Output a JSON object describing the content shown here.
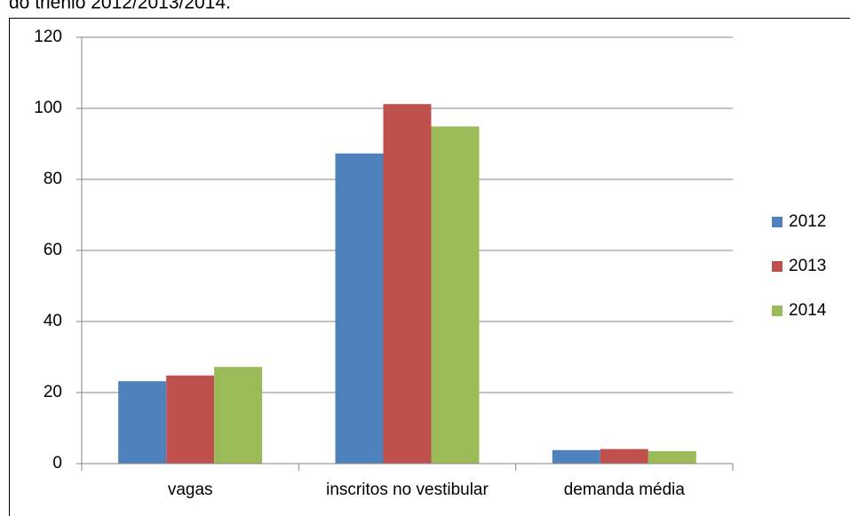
{
  "caption": "do triênio 2012/2013/2014.",
  "chart_data": {
    "type": "bar",
    "categories": [
      "vagas",
      "inscritos no vestibular",
      "demanda média"
    ],
    "series": [
      {
        "name": "2012",
        "color": "#4f81bd",
        "values": [
          23.2,
          87.3,
          3.8
        ]
      },
      {
        "name": "2013",
        "color": "#c0504d",
        "values": [
          24.8,
          101.2,
          4.1
        ]
      },
      {
        "name": "2014",
        "color": "#9bbb59",
        "values": [
          27.2,
          94.9,
          3.5
        ]
      }
    ],
    "ylim": [
      0,
      120
    ],
    "yticks": [
      0,
      20,
      40,
      60,
      80,
      100,
      120
    ],
    "grid": true,
    "legend": "right"
  }
}
